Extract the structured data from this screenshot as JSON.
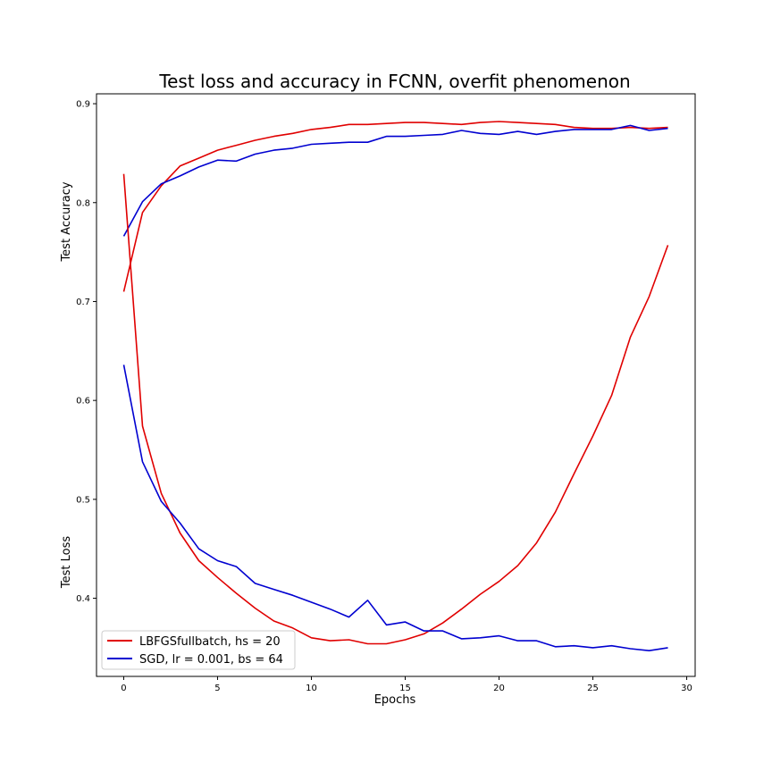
{
  "chart_data": {
    "type": "line",
    "title": "Test loss and accuracy in FCNN, overfit phenomenon",
    "xlabel": "Epochs",
    "ylabels": [
      "Test Accuracy",
      "Test Loss"
    ],
    "xlim": [
      -1.45,
      30.45
    ],
    "ylim": [
      0.321,
      0.91
    ],
    "x_ticks": [
      0,
      5,
      10,
      15,
      20,
      25,
      30
    ],
    "y_ticks": [
      0.4,
      0.5,
      0.6,
      0.7,
      0.8,
      0.9
    ],
    "x_tick_labels": [
      "0",
      "5",
      "10",
      "15",
      "20",
      "25",
      "30"
    ],
    "y_tick_labels": [
      "0.4",
      "0.5",
      "0.6",
      "0.7",
      "0.8",
      "0.9"
    ],
    "grid": false,
    "legend_position": "lower-left",
    "x": [
      0,
      1,
      2,
      3,
      4,
      5,
      6,
      7,
      8,
      9,
      10,
      11,
      12,
      13,
      14,
      15,
      16,
      17,
      18,
      19,
      20,
      21,
      22,
      23,
      24,
      25,
      26,
      27,
      28,
      29
    ],
    "series": [
      {
        "name": "LBFGSfullbatch, hs = 20",
        "color": "#e00000",
        "values": [
          0.71,
          0.79,
          0.817,
          0.837,
          0.845,
          0.853,
          0.858,
          0.863,
          0.867,
          0.87,
          0.874,
          0.876,
          0.879,
          0.879,
          0.88,
          0.881,
          0.881,
          0.88,
          0.879,
          0.881,
          0.882,
          0.881,
          0.88,
          0.879,
          0.876,
          0.875,
          0.875,
          0.876,
          0.875,
          0.876
        ]
      },
      {
        "name": "SGD, lr = 0.001, bs = 64",
        "color": "#0000d0",
        "values": [
          0.766,
          0.801,
          0.819,
          0.827,
          0.836,
          0.843,
          0.842,
          0.849,
          0.853,
          0.855,
          0.859,
          0.86,
          0.861,
          0.861,
          0.867,
          0.867,
          0.868,
          0.869,
          0.873,
          0.87,
          0.869,
          0.872,
          0.869,
          0.872,
          0.874,
          0.874,
          0.874,
          0.878,
          0.873,
          0.875
        ]
      },
      {
        "name": "LBFGSfullbatch, hs = 20",
        "color": "#e00000",
        "values": [
          0.829,
          0.574,
          0.506,
          0.466,
          0.438,
          0.421,
          0.405,
          0.39,
          0.377,
          0.37,
          0.36,
          0.357,
          0.358,
          0.354,
          0.354,
          0.358,
          0.364,
          0.375,
          0.389,
          0.404,
          0.417,
          0.433,
          0.456,
          0.487,
          0.526,
          0.564,
          0.605,
          0.664,
          0.705,
          0.757
        ]
      },
      {
        "name": "SGD, lr = 0.001, bs = 64",
        "color": "#0000d0",
        "values": [
          0.636,
          0.538,
          0.498,
          0.476,
          0.45,
          0.438,
          0.432,
          0.415,
          0.409,
          0.403,
          0.396,
          0.389,
          0.381,
          0.398,
          0.373,
          0.376,
          0.367,
          0.367,
          0.359,
          0.36,
          0.362,
          0.357,
          0.357,
          0.351,
          0.352,
          0.35,
          0.352,
          0.349,
          0.347,
          0.35
        ]
      }
    ]
  }
}
